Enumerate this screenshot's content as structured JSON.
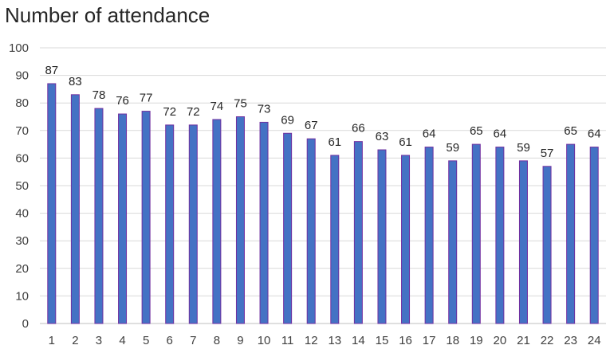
{
  "chart_data": {
    "type": "bar",
    "title": "Number of attendance",
    "categories": [
      "1",
      "2",
      "3",
      "4",
      "5",
      "6",
      "7",
      "8",
      "9",
      "10",
      "11",
      "12",
      "13",
      "14",
      "15",
      "16",
      "17",
      "18",
      "19",
      "20",
      "21",
      "22",
      "23",
      "24"
    ],
    "values": [
      87,
      83,
      78,
      76,
      77,
      72,
      72,
      74,
      75,
      73,
      69,
      67,
      61,
      66,
      63,
      61,
      64,
      59,
      65,
      64,
      59,
      57,
      65,
      64
    ],
    "ylim": [
      0,
      100
    ],
    "yticks": [
      "0",
      "10",
      "20",
      "30",
      "40",
      "50",
      "60",
      "70",
      "80",
      "90",
      "100"
    ],
    "xlabel": "",
    "ylabel": "",
    "grid": true,
    "bar_color": "#4472c4",
    "bar_edge_color": "#7030a0",
    "data_labels": true
  }
}
